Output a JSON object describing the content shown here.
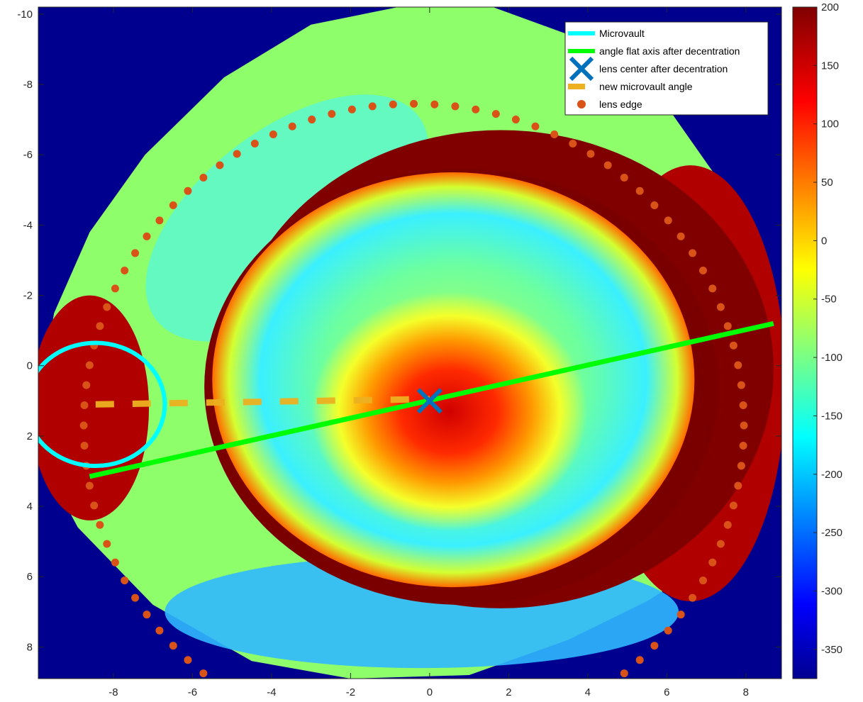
{
  "chart_data": {
    "type": "heatmap",
    "title": "",
    "xlabel": "",
    "ylabel": "",
    "xlim": [
      -9.9,
      8.9
    ],
    "ylim": [
      -10.2,
      8.9
    ],
    "y_reversed": true,
    "x_ticks": [
      -8,
      -6,
      -4,
      -2,
      0,
      2,
      4,
      6,
      8
    ],
    "y_ticks": [
      -10,
      -8,
      -6,
      -4,
      -2,
      0,
      2,
      4,
      6,
      8
    ],
    "colorbar": {
      "colormap": "jet",
      "range": [
        -375,
        200
      ],
      "ticks": [
        200,
        150,
        100,
        50,
        0,
        -50,
        -100,
        -150,
        -200,
        -250,
        -300,
        -350
      ]
    },
    "background_color": "#00008f",
    "series": [
      {
        "name": "Microvault",
        "type": "circle",
        "color": "#00ffff",
        "center": [
          -8.45,
          1.1
        ],
        "radius": 1.75
      },
      {
        "name": "angle flat axis after decentration",
        "type": "line",
        "color": "#00ff00",
        "points": [
          [
            -8.6,
            3.15
          ],
          [
            8.7,
            -1.2
          ]
        ]
      },
      {
        "name": "lens center after decentration",
        "type": "marker",
        "marker": "x",
        "color": "#0072bd",
        "point": [
          0,
          1.0
        ]
      },
      {
        "name": "new microvault angle",
        "type": "line",
        "style": "dashed",
        "color": "#edb120",
        "points": [
          [
            -8.45,
            1.1
          ],
          [
            0,
            0.95
          ]
        ]
      },
      {
        "name": "lens edge",
        "type": "scatter",
        "marker": "o",
        "color": "#d95319",
        "ellipse": {
          "cx": -0.4,
          "cy": 1.7,
          "rx": 8.35,
          "ry": 9.15,
          "points": 100,
          "y_max": 8.9
        }
      }
    ],
    "legend": {
      "location": "top-right",
      "entries": [
        "Microvault",
        "angle flat axis after decentration",
        "lens center after decentration",
        "new microvault angle",
        "lens edge"
      ]
    }
  }
}
